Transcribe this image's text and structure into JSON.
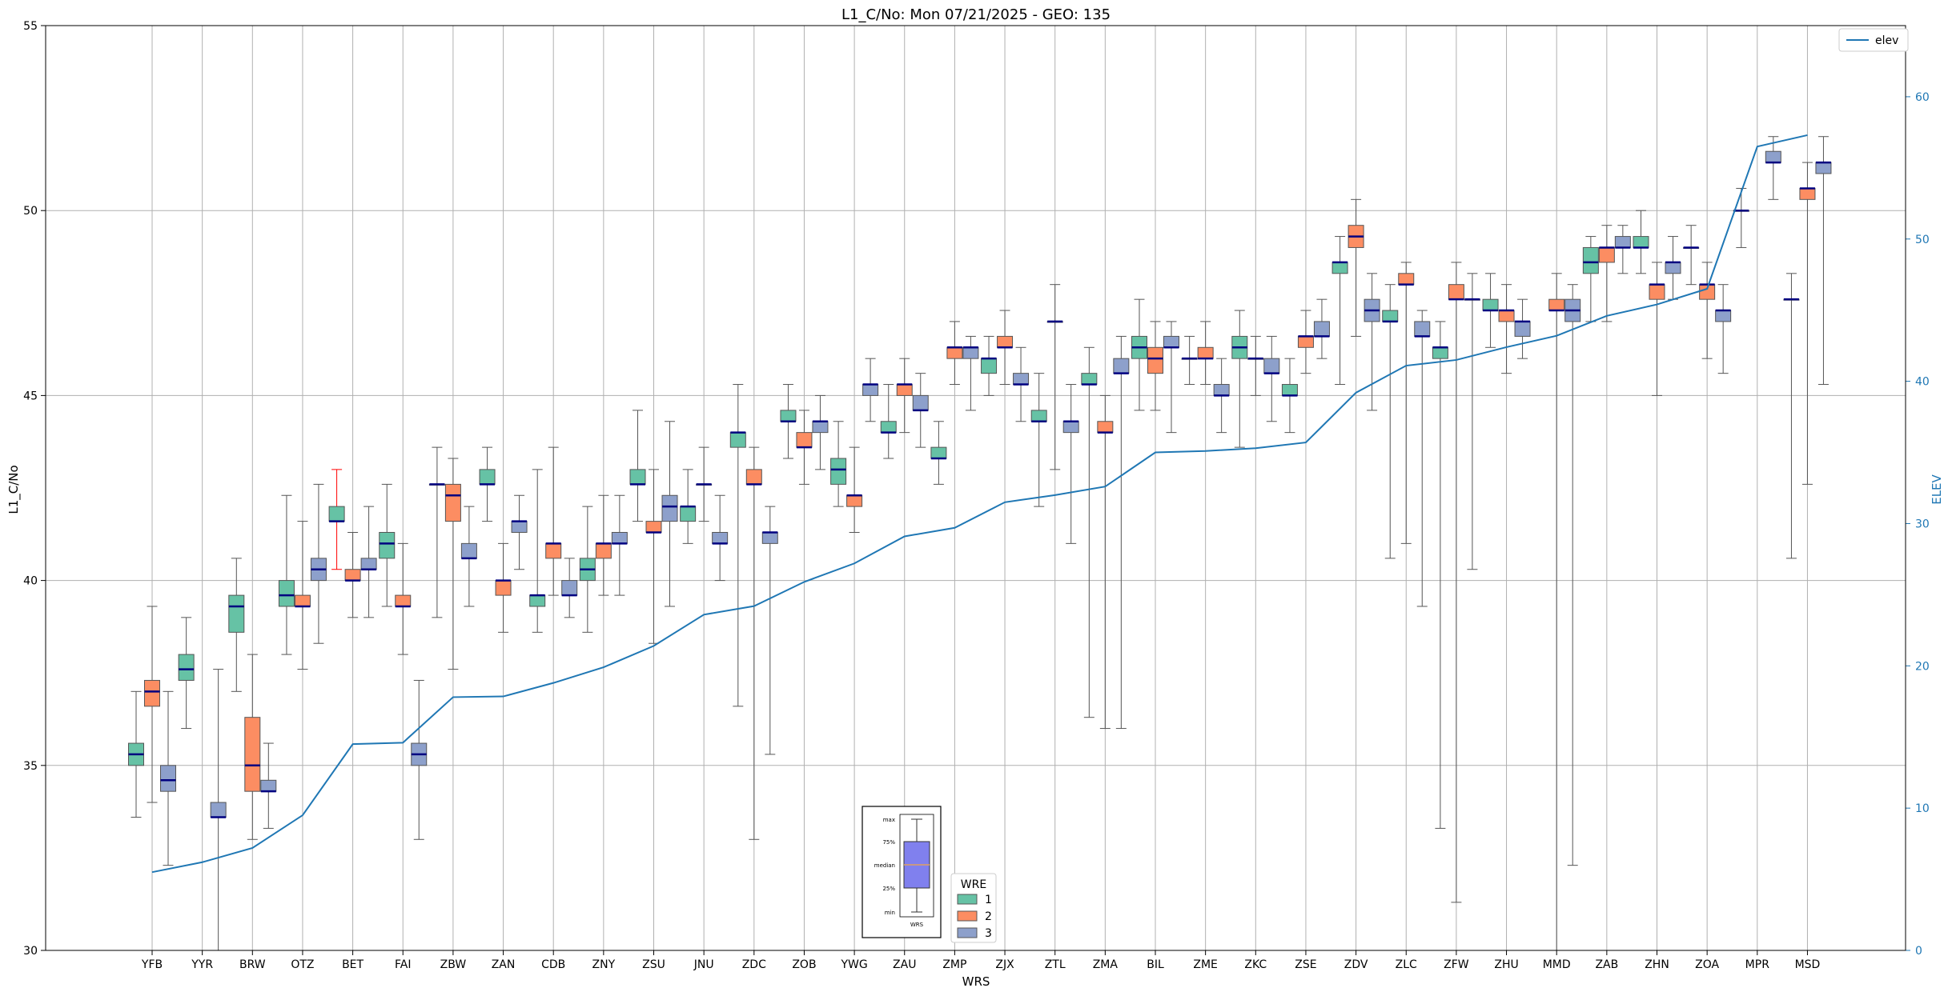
{
  "chart_data": {
    "type": "box",
    "title": "L1_C/No: Mon 07/21/2025 - GEO: 135",
    "xlabel": "WRS",
    "ylabel": "L1_C/No",
    "y2label": "ELEV",
    "ylim": [
      30,
      55
    ],
    "y2lim": [
      0,
      65
    ],
    "yticks": [
      30,
      35,
      40,
      45,
      50,
      55
    ],
    "y2ticks": [
      0,
      10,
      20,
      30,
      40,
      50,
      60
    ],
    "categories": [
      "YFB",
      "YYR",
      "BRW",
      "OTZ",
      "BET",
      "FAI",
      "ZBW",
      "ZAN",
      "CDB",
      "ZNY",
      "ZSU",
      "JNU",
      "ZDC",
      "ZOB",
      "YWG",
      "ZAU",
      "ZMP",
      "ZJX",
      "ZTL",
      "ZMA",
      "BIL",
      "ZME",
      "ZKC",
      "ZSE",
      "ZDV",
      "ZLC",
      "ZFW",
      "ZHU",
      "MMD",
      "ZAB",
      "ZHN",
      "ZOA",
      "MPR",
      "MSD"
    ],
    "series_colors": {
      "1": "#66c2a5",
      "2": "#fc8d62",
      "3": "#8da0cb"
    },
    "median_color": "#000080",
    "legend": {
      "title": "WRE",
      "entries": [
        "1",
        "2",
        "3"
      ]
    },
    "elev_legend": "elev",
    "elev_color": "#1f77b4",
    "elev": [
      5.5,
      6.2,
      7.2,
      9.5,
      14.5,
      14.6,
      17.8,
      17.85,
      18.8,
      19.9,
      21.4,
      23.6,
      24.2,
      25.9,
      27.2,
      29.1,
      29.7,
      31.5,
      32.0,
      32.6,
      35.0,
      35.1,
      35.3,
      35.7,
      39.2,
      41.1,
      41.5,
      42.4,
      43.2,
      44.6,
      45.4,
      46.5,
      56.5,
      57.3
    ],
    "boxes": [
      {
        "cat": "YFB",
        "wre": "1",
        "min": 33.6,
        "q1": 35.0,
        "median": 35.3,
        "q3": 35.6,
        "max": 37.0
      },
      {
        "cat": "YFB",
        "wre": "2",
        "min": 34.0,
        "q1": 36.6,
        "median": 37.0,
        "q3": 37.3,
        "max": 39.3
      },
      {
        "cat": "YFB",
        "wre": "3",
        "min": 32.3,
        "q1": 34.3,
        "median": 34.6,
        "q3": 35.0,
        "max": 37.0
      },
      {
        "cat": "YYR",
        "wre": "1",
        "min": 36.0,
        "q1": 37.3,
        "median": 37.6,
        "q3": 38.0,
        "max": 39.0
      },
      {
        "cat": "YYR",
        "wre": "3",
        "min": 30.0,
        "q1": 33.6,
        "median": 33.6,
        "q3": 34.0,
        "max": 37.6
      },
      {
        "cat": "BRW",
        "wre": "1",
        "min": 37.0,
        "q1": 38.6,
        "median": 39.3,
        "q3": 39.6,
        "max": 40.6
      },
      {
        "cat": "BRW",
        "wre": "2",
        "min": 33.0,
        "q1": 34.3,
        "median": 35.0,
        "q3": 36.3,
        "max": 38.0
      },
      {
        "cat": "BRW",
        "wre": "3",
        "min": 33.3,
        "q1": 34.3,
        "median": 34.3,
        "q3": 34.6,
        "max": 35.6
      },
      {
        "cat": "OTZ",
        "wre": "1",
        "min": 38.0,
        "q1": 39.3,
        "median": 39.6,
        "q3": 40.0,
        "max": 42.3
      },
      {
        "cat": "OTZ",
        "wre": "2",
        "min": 37.6,
        "q1": 39.3,
        "median": 39.3,
        "q3": 39.6,
        "max": 41.6
      },
      {
        "cat": "OTZ",
        "wre": "3",
        "min": 38.3,
        "q1": 40.0,
        "median": 40.3,
        "q3": 40.6,
        "max": 42.6
      },
      {
        "cat": "BET",
        "wre": "1",
        "min": 40.3,
        "q1": 41.6,
        "median": 41.6,
        "q3": 42.0,
        "max": 43.0,
        "whisker_color": "#ff0000"
      },
      {
        "cat": "BET",
        "wre": "2",
        "min": 39.0,
        "q1": 40.0,
        "median": 40.0,
        "q3": 40.3,
        "max": 41.3
      },
      {
        "cat": "BET",
        "wre": "3",
        "min": 39.0,
        "q1": 40.3,
        "median": 40.3,
        "q3": 40.6,
        "max": 42.0
      },
      {
        "cat": "FAI",
        "wre": "1",
        "min": 39.3,
        "q1": 40.6,
        "median": 41.0,
        "q3": 41.3,
        "max": 42.6
      },
      {
        "cat": "FAI",
        "wre": "2",
        "min": 38.0,
        "q1": 39.3,
        "median": 39.3,
        "q3": 39.6,
        "max": 41.0
      },
      {
        "cat": "FAI",
        "wre": "3",
        "min": 33.0,
        "q1": 35.0,
        "median": 35.3,
        "q3": 35.6,
        "max": 37.3
      },
      {
        "cat": "ZBW",
        "wre": "1",
        "min": 39.0,
        "q1": 42.6,
        "median": 42.6,
        "q3": 42.6,
        "max": 43.6
      },
      {
        "cat": "ZBW",
        "wre": "2",
        "min": 37.6,
        "q1": 41.6,
        "median": 42.3,
        "q3": 42.6,
        "max": 43.3
      },
      {
        "cat": "ZBW",
        "wre": "3",
        "min": 39.3,
        "q1": 40.6,
        "median": 40.6,
        "q3": 41.0,
        "max": 42.0
      },
      {
        "cat": "ZAN",
        "wre": "1",
        "min": 41.6,
        "q1": 42.6,
        "median": 42.6,
        "q3": 43.0,
        "max": 43.6
      },
      {
        "cat": "ZAN",
        "wre": "2",
        "min": 38.6,
        "q1": 39.6,
        "median": 40.0,
        "q3": 40.0,
        "max": 41.0
      },
      {
        "cat": "ZAN",
        "wre": "3",
        "min": 40.3,
        "q1": 41.3,
        "median": 41.6,
        "q3": 41.6,
        "max": 42.3
      },
      {
        "cat": "CDB",
        "wre": "1",
        "min": 38.6,
        "q1": 39.3,
        "median": 39.6,
        "q3": 39.6,
        "max": 43.0
      },
      {
        "cat": "CDB",
        "wre": "2",
        "min": 39.6,
        "q1": 40.6,
        "median": 41.0,
        "q3": 41.0,
        "max": 43.6
      },
      {
        "cat": "CDB",
        "wre": "3",
        "min": 39.0,
        "q1": 39.6,
        "median": 39.6,
        "q3": 40.0,
        "max": 40.6
      },
      {
        "cat": "ZNY",
        "wre": "1",
        "min": 38.6,
        "q1": 40.0,
        "median": 40.3,
        "q3": 40.6,
        "max": 42.0
      },
      {
        "cat": "ZNY",
        "wre": "2",
        "min": 39.6,
        "q1": 40.6,
        "median": 41.0,
        "q3": 41.0,
        "max": 42.3
      },
      {
        "cat": "ZNY",
        "wre": "3",
        "min": 39.6,
        "q1": 41.0,
        "median": 41.0,
        "q3": 41.3,
        "max": 42.3
      },
      {
        "cat": "ZSU",
        "wre": "1",
        "min": 41.6,
        "q1": 42.6,
        "median": 42.6,
        "q3": 43.0,
        "max": 44.6
      },
      {
        "cat": "ZSU",
        "wre": "2",
        "min": 38.3,
        "q1": 41.3,
        "median": 41.3,
        "q3": 41.6,
        "max": 43.0
      },
      {
        "cat": "ZSU",
        "wre": "3",
        "min": 39.3,
        "q1": 41.6,
        "median": 42.0,
        "q3": 42.3,
        "max": 44.3
      },
      {
        "cat": "JNU",
        "wre": "1",
        "min": 41.0,
        "q1": 41.6,
        "median": 42.0,
        "q3": 42.0,
        "max": 43.0
      },
      {
        "cat": "JNU",
        "wre": "2",
        "min": 41.6,
        "q1": 42.6,
        "median": 42.6,
        "q3": 42.6,
        "max": 43.6
      },
      {
        "cat": "JNU",
        "wre": "3",
        "min": 40.0,
        "q1": 41.0,
        "median": 41.0,
        "q3": 41.3,
        "max": 42.3
      },
      {
        "cat": "ZDC",
        "wre": "1",
        "min": 36.6,
        "q1": 43.6,
        "median": 44.0,
        "q3": 44.0,
        "max": 45.3
      },
      {
        "cat": "ZDC",
        "wre": "2",
        "min": 33.0,
        "q1": 42.6,
        "median": 42.6,
        "q3": 43.0,
        "max": 43.6
      },
      {
        "cat": "ZDC",
        "wre": "3",
        "min": 35.3,
        "q1": 41.0,
        "median": 41.3,
        "q3": 41.3,
        "max": 42.0
      },
      {
        "cat": "ZOB",
        "wre": "1",
        "min": 43.3,
        "q1": 44.3,
        "median": 44.3,
        "q3": 44.6,
        "max": 45.3
      },
      {
        "cat": "ZOB",
        "wre": "2",
        "min": 42.6,
        "q1": 43.6,
        "median": 43.6,
        "q3": 44.0,
        "max": 44.6
      },
      {
        "cat": "ZOB",
        "wre": "3",
        "min": 43.0,
        "q1": 44.0,
        "median": 44.3,
        "q3": 44.3,
        "max": 45.0
      },
      {
        "cat": "YWG",
        "wre": "1",
        "min": 42.0,
        "q1": 42.6,
        "median": 43.0,
        "q3": 43.3,
        "max": 44.3
      },
      {
        "cat": "YWG",
        "wre": "2",
        "min": 41.3,
        "q1": 42.0,
        "median": 42.3,
        "q3": 42.3,
        "max": 43.6
      },
      {
        "cat": "YWG",
        "wre": "3",
        "min": 44.3,
        "q1": 45.0,
        "median": 45.3,
        "q3": 45.3,
        "max": 46.0
      },
      {
        "cat": "ZAU",
        "wre": "1",
        "min": 43.3,
        "q1": 44.0,
        "median": 44.0,
        "q3": 44.3,
        "max": 45.3
      },
      {
        "cat": "ZAU",
        "wre": "2",
        "min": 44.0,
        "q1": 45.0,
        "median": 45.3,
        "q3": 45.3,
        "max": 46.0
      },
      {
        "cat": "ZAU",
        "wre": "3",
        "min": 43.6,
        "q1": 44.6,
        "median": 44.6,
        "q3": 45.0,
        "max": 45.6
      },
      {
        "cat": "ZMP",
        "wre": "1",
        "min": 42.6,
        "q1": 43.3,
        "median": 43.3,
        "q3": 43.6,
        "max": 44.3
      },
      {
        "cat": "ZMP",
        "wre": "2",
        "min": 45.3,
        "q1": 46.0,
        "median": 46.3,
        "q3": 46.3,
        "max": 47.0
      },
      {
        "cat": "ZMP",
        "wre": "3",
        "min": 44.6,
        "q1": 46.0,
        "median": 46.3,
        "q3": 46.3,
        "max": 46.6
      },
      {
        "cat": "ZJX",
        "wre": "1",
        "min": 45.0,
        "q1": 45.6,
        "median": 46.0,
        "q3": 46.0,
        "max": 46.6
      },
      {
        "cat": "ZJX",
        "wre": "2",
        "min": 45.3,
        "q1": 46.3,
        "median": 46.3,
        "q3": 46.6,
        "max": 47.3
      },
      {
        "cat": "ZJX",
        "wre": "3",
        "min": 44.3,
        "q1": 45.3,
        "median": 45.3,
        "q3": 45.6,
        "max": 46.3
      },
      {
        "cat": "ZTL",
        "wre": "1",
        "min": 42.0,
        "q1": 44.3,
        "median": 44.3,
        "q3": 44.6,
        "max": 45.6
      },
      {
        "cat": "ZTL",
        "wre": "2",
        "min": 43.0,
        "q1": 47.0,
        "median": 47.0,
        "q3": 47.0,
        "max": 48.0
      },
      {
        "cat": "ZTL",
        "wre": "3",
        "min": 41.0,
        "q1": 44.0,
        "median": 44.3,
        "q3": 44.3,
        "max": 45.3
      },
      {
        "cat": "ZMA",
        "wre": "1",
        "min": 36.3,
        "q1": 45.3,
        "median": 45.3,
        "q3": 45.6,
        "max": 46.3
      },
      {
        "cat": "ZMA",
        "wre": "2",
        "min": 36.0,
        "q1": 44.0,
        "median": 44.0,
        "q3": 44.3,
        "max": 45.0
      },
      {
        "cat": "ZMA",
        "wre": "3",
        "min": 36.0,
        "q1": 45.6,
        "median": 45.6,
        "q3": 46.0,
        "max": 46.6
      },
      {
        "cat": "BIL",
        "wre": "1",
        "min": 44.6,
        "q1": 46.0,
        "median": 46.3,
        "q3": 46.6,
        "max": 47.6
      },
      {
        "cat": "BIL",
        "wre": "2",
        "min": 44.6,
        "q1": 45.6,
        "median": 46.0,
        "q3": 46.3,
        "max": 47.0
      },
      {
        "cat": "BIL",
        "wre": "3",
        "min": 44.0,
        "q1": 46.3,
        "median": 46.3,
        "q3": 46.6,
        "max": 47.0
      },
      {
        "cat": "ZME",
        "wre": "1",
        "min": 45.3,
        "q1": 46.0,
        "median": 46.0,
        "q3": 46.0,
        "max": 46.6
      },
      {
        "cat": "ZME",
        "wre": "2",
        "min": 45.3,
        "q1": 46.0,
        "median": 46.0,
        "q3": 46.3,
        "max": 47.0
      },
      {
        "cat": "ZME",
        "wre": "3",
        "min": 44.0,
        "q1": 45.0,
        "median": 45.0,
        "q3": 45.3,
        "max": 46.0
      },
      {
        "cat": "ZKC",
        "wre": "1",
        "min": 43.6,
        "q1": 46.0,
        "median": 46.3,
        "q3": 46.6,
        "max": 47.3
      },
      {
        "cat": "ZKC",
        "wre": "2",
        "min": 45.0,
        "q1": 46.0,
        "median": 46.0,
        "q3": 46.0,
        "max": 46.6
      },
      {
        "cat": "ZKC",
        "wre": "3",
        "min": 44.3,
        "q1": 45.6,
        "median": 45.6,
        "q3": 46.0,
        "max": 46.6
      },
      {
        "cat": "ZSE",
        "wre": "1",
        "min": 44.0,
        "q1": 45.0,
        "median": 45.0,
        "q3": 45.3,
        "max": 46.0
      },
      {
        "cat": "ZSE",
        "wre": "2",
        "min": 45.6,
        "q1": 46.3,
        "median": 46.6,
        "q3": 46.6,
        "max": 47.3
      },
      {
        "cat": "ZSE",
        "wre": "3",
        "min": 46.0,
        "q1": 46.6,
        "median": 46.6,
        "q3": 47.0,
        "max": 47.6
      },
      {
        "cat": "ZDV",
        "wre": "1",
        "min": 45.3,
        "q1": 48.3,
        "median": 48.6,
        "q3": 48.6,
        "max": 49.3
      },
      {
        "cat": "ZDV",
        "wre": "2",
        "min": 46.6,
        "q1": 49.0,
        "median": 49.3,
        "q3": 49.6,
        "max": 50.3
      },
      {
        "cat": "ZDV",
        "wre": "3",
        "min": 44.6,
        "q1": 47.0,
        "median": 47.3,
        "q3": 47.6,
        "max": 48.3
      },
      {
        "cat": "ZLC",
        "wre": "1",
        "min": 40.6,
        "q1": 47.0,
        "median": 47.0,
        "q3": 47.3,
        "max": 48.0
      },
      {
        "cat": "ZLC",
        "wre": "2",
        "min": 41.0,
        "q1": 48.0,
        "median": 48.0,
        "q3": 48.3,
        "max": 48.6
      },
      {
        "cat": "ZLC",
        "wre": "3",
        "min": 39.3,
        "q1": 46.6,
        "median": 46.6,
        "q3": 47.0,
        "max": 47.3
      },
      {
        "cat": "ZFW",
        "wre": "1",
        "min": 33.3,
        "q1": 46.0,
        "median": 46.3,
        "q3": 46.3,
        "max": 47.0
      },
      {
        "cat": "ZFW",
        "wre": "2",
        "min": 31.3,
        "q1": 47.6,
        "median": 47.6,
        "q3": 48.0,
        "max": 48.6
      },
      {
        "cat": "ZFW",
        "wre": "3",
        "min": 40.3,
        "q1": 47.6,
        "median": 47.6,
        "q3": 47.6,
        "max": 48.3
      },
      {
        "cat": "ZHU",
        "wre": "1",
        "min": 46.3,
        "q1": 47.3,
        "median": 47.3,
        "q3": 47.6,
        "max": 48.3
      },
      {
        "cat": "ZHU",
        "wre": "2",
        "min": 45.6,
        "q1": 47.0,
        "median": 47.3,
        "q3": 47.3,
        "max": 48.0
      },
      {
        "cat": "ZHU",
        "wre": "3",
        "min": 46.0,
        "q1": 46.6,
        "median": 47.0,
        "q3": 47.0,
        "max": 47.6
      },
      {
        "cat": "MMD",
        "wre": "2",
        "min": 30.0,
        "q1": 47.3,
        "median": 47.3,
        "q3": 47.6,
        "max": 48.3
      },
      {
        "cat": "MMD",
        "wre": "3",
        "min": 32.3,
        "q1": 47.0,
        "median": 47.3,
        "q3": 47.6,
        "max": 48.0
      },
      {
        "cat": "ZAB",
        "wre": "1",
        "min": 47.0,
        "q1": 48.3,
        "median": 48.6,
        "q3": 49.0,
        "max": 49.3
      },
      {
        "cat": "ZAB",
        "wre": "2",
        "min": 47.0,
        "q1": 48.6,
        "median": 49.0,
        "q3": 49.0,
        "max": 49.6
      },
      {
        "cat": "ZAB",
        "wre": "3",
        "min": 48.3,
        "q1": 49.0,
        "median": 49.0,
        "q3": 49.3,
        "max": 49.6
      },
      {
        "cat": "ZHN",
        "wre": "1",
        "min": 48.3,
        "q1": 49.0,
        "median": 49.0,
        "q3": 49.3,
        "max": 50.0
      },
      {
        "cat": "ZHN",
        "wre": "2",
        "min": 45.0,
        "q1": 47.6,
        "median": 48.0,
        "q3": 48.0,
        "max": 48.6
      },
      {
        "cat": "ZHN",
        "wre": "3",
        "min": 47.6,
        "q1": 48.3,
        "median": 48.6,
        "q3": 48.6,
        "max": 49.3
      },
      {
        "cat": "ZOA",
        "wre": "1",
        "min": 48.0,
        "q1": 49.0,
        "median": 49.0,
        "q3": 49.0,
        "max": 49.6
      },
      {
        "cat": "ZOA",
        "wre": "2",
        "min": 46.0,
        "q1": 47.6,
        "median": 48.0,
        "q3": 48.0,
        "max": 48.6
      },
      {
        "cat": "ZOA",
        "wre": "3",
        "min": 45.6,
        "q1": 47.0,
        "median": 47.3,
        "q3": 47.3,
        "max": 48.0
      },
      {
        "cat": "MPR",
        "wre": "1",
        "min": 49.0,
        "q1": 50.0,
        "median": 50.0,
        "q3": 50.0,
        "max": 50.6
      },
      {
        "cat": "MPR",
        "wre": "3",
        "min": 50.3,
        "q1": 51.3,
        "median": 51.3,
        "q3": 51.6,
        "max": 52.0
      },
      {
        "cat": "MSD",
        "wre": "1",
        "min": 40.6,
        "q1": 47.6,
        "median": 47.6,
        "q3": 47.6,
        "max": 48.3
      },
      {
        "cat": "MSD",
        "wre": "2",
        "min": 42.6,
        "q1": 50.3,
        "median": 50.6,
        "q3": 50.6,
        "max": 51.3
      },
      {
        "cat": "MSD",
        "wre": "3",
        "min": 45.3,
        "q1": 51.0,
        "median": 51.3,
        "q3": 51.3,
        "max": 52.0
      }
    ],
    "key_inset": {
      "labels": [
        "max",
        "75%",
        "median",
        "25%",
        "min"
      ],
      "xlabel": "WRS",
      "box_color": "#8080ee"
    }
  }
}
